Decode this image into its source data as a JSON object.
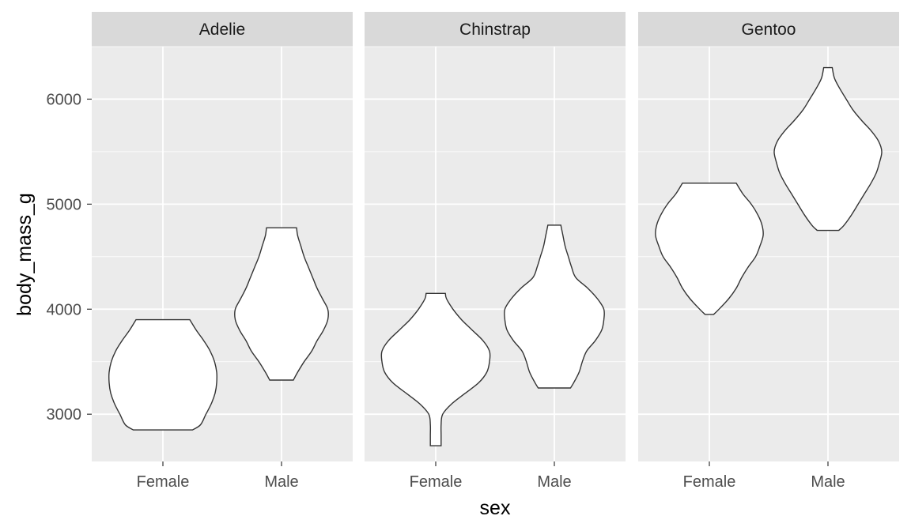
{
  "chart_data": {
    "type": "violin",
    "xlabel": "sex",
    "ylabel": "body_mass_g",
    "ylim": [
      2550,
      6500
    ],
    "yticks": [
      3000,
      4000,
      5000,
      6000
    ],
    "categories": [
      "Female",
      "Male"
    ],
    "facets": [
      {
        "name": "Adelie",
        "violins": [
          {
            "category": "Female",
            "min": 2850,
            "max": 3900,
            "profile": [
              [
                2850,
                0.55
              ],
              [
                2900,
                0.7
              ],
              [
                3000,
                0.8
              ],
              [
                3100,
                0.9
              ],
              [
                3200,
                0.97
              ],
              [
                3300,
                1.0
              ],
              [
                3400,
                1.0
              ],
              [
                3500,
                0.96
              ],
              [
                3600,
                0.88
              ],
              [
                3700,
                0.76
              ],
              [
                3800,
                0.62
              ],
              [
                3900,
                0.5
              ]
            ]
          },
          {
            "category": "Male",
            "min": 3325,
            "max": 4775,
            "profile": [
              [
                3325,
                0.22
              ],
              [
                3400,
                0.3
              ],
              [
                3500,
                0.42
              ],
              [
                3600,
                0.56
              ],
              [
                3700,
                0.66
              ],
              [
                3800,
                0.78
              ],
              [
                3900,
                0.86
              ],
              [
                4000,
                0.86
              ],
              [
                4100,
                0.76
              ],
              [
                4200,
                0.66
              ],
              [
                4300,
                0.58
              ],
              [
                4400,
                0.5
              ],
              [
                4500,
                0.42
              ],
              [
                4600,
                0.36
              ],
              [
                4700,
                0.3
              ],
              [
                4775,
                0.28
              ]
            ]
          }
        ]
      },
      {
        "name": "Chinstrap",
        "violins": [
          {
            "category": "Female",
            "min": 2700,
            "max": 4150,
            "profile": [
              [
                2700,
                0.1
              ],
              [
                2800,
                0.1
              ],
              [
                2900,
                0.1
              ],
              [
                3000,
                0.13
              ],
              [
                3100,
                0.3
              ],
              [
                3200,
                0.55
              ],
              [
                3300,
                0.8
              ],
              [
                3400,
                0.95
              ],
              [
                3500,
                1.0
              ],
              [
                3600,
                1.0
              ],
              [
                3700,
                0.88
              ],
              [
                3800,
                0.68
              ],
              [
                3900,
                0.48
              ],
              [
                4000,
                0.32
              ],
              [
                4100,
                0.2
              ],
              [
                4150,
                0.18
              ]
            ]
          },
          {
            "category": "Male",
            "min": 3250,
            "max": 4800,
            "profile": [
              [
                3250,
                0.3
              ],
              [
                3300,
                0.36
              ],
              [
                3400,
                0.46
              ],
              [
                3500,
                0.52
              ],
              [
                3600,
                0.6
              ],
              [
                3700,
                0.76
              ],
              [
                3800,
                0.88
              ],
              [
                3900,
                0.92
              ],
              [
                4000,
                0.92
              ],
              [
                4100,
                0.8
              ],
              [
                4200,
                0.62
              ],
              [
                4300,
                0.4
              ],
              [
                4400,
                0.32
              ],
              [
                4500,
                0.26
              ],
              [
                4600,
                0.2
              ],
              [
                4700,
                0.16
              ],
              [
                4800,
                0.12
              ]
            ]
          }
        ]
      },
      {
        "name": "Gentoo",
        "violins": [
          {
            "category": "Female",
            "min": 3950,
            "max": 5200,
            "profile": [
              [
                3950,
                0.08
              ],
              [
                4000,
                0.18
              ],
              [
                4100,
                0.36
              ],
              [
                4200,
                0.5
              ],
              [
                4300,
                0.6
              ],
              [
                4400,
                0.72
              ],
              [
                4500,
                0.86
              ],
              [
                4600,
                0.94
              ],
              [
                4700,
                1.0
              ],
              [
                4800,
                0.98
              ],
              [
                4900,
                0.9
              ],
              [
                5000,
                0.78
              ],
              [
                5100,
                0.62
              ],
              [
                5200,
                0.5
              ]
            ]
          },
          {
            "category": "Male",
            "min": 4750,
            "max": 6300,
            "profile": [
              [
                4750,
                0.2
              ],
              [
                4800,
                0.3
              ],
              [
                4900,
                0.44
              ],
              [
                5000,
                0.56
              ],
              [
                5100,
                0.68
              ],
              [
                5200,
                0.8
              ],
              [
                5300,
                0.9
              ],
              [
                5400,
                0.96
              ],
              [
                5500,
                1.0
              ],
              [
                5600,
                0.94
              ],
              [
                5700,
                0.8
              ],
              [
                5800,
                0.62
              ],
              [
                5900,
                0.46
              ],
              [
                6000,
                0.34
              ],
              [
                6100,
                0.22
              ],
              [
                6200,
                0.12
              ],
              [
                6300,
                0.08
              ]
            ]
          }
        ]
      }
    ],
    "colors": {
      "panel_bg": "#ebebeb",
      "strip_bg": "#d9d9d9",
      "grid": "#ffffff",
      "violin_fill": "#ffffff",
      "violin_stroke": "#333333"
    }
  }
}
